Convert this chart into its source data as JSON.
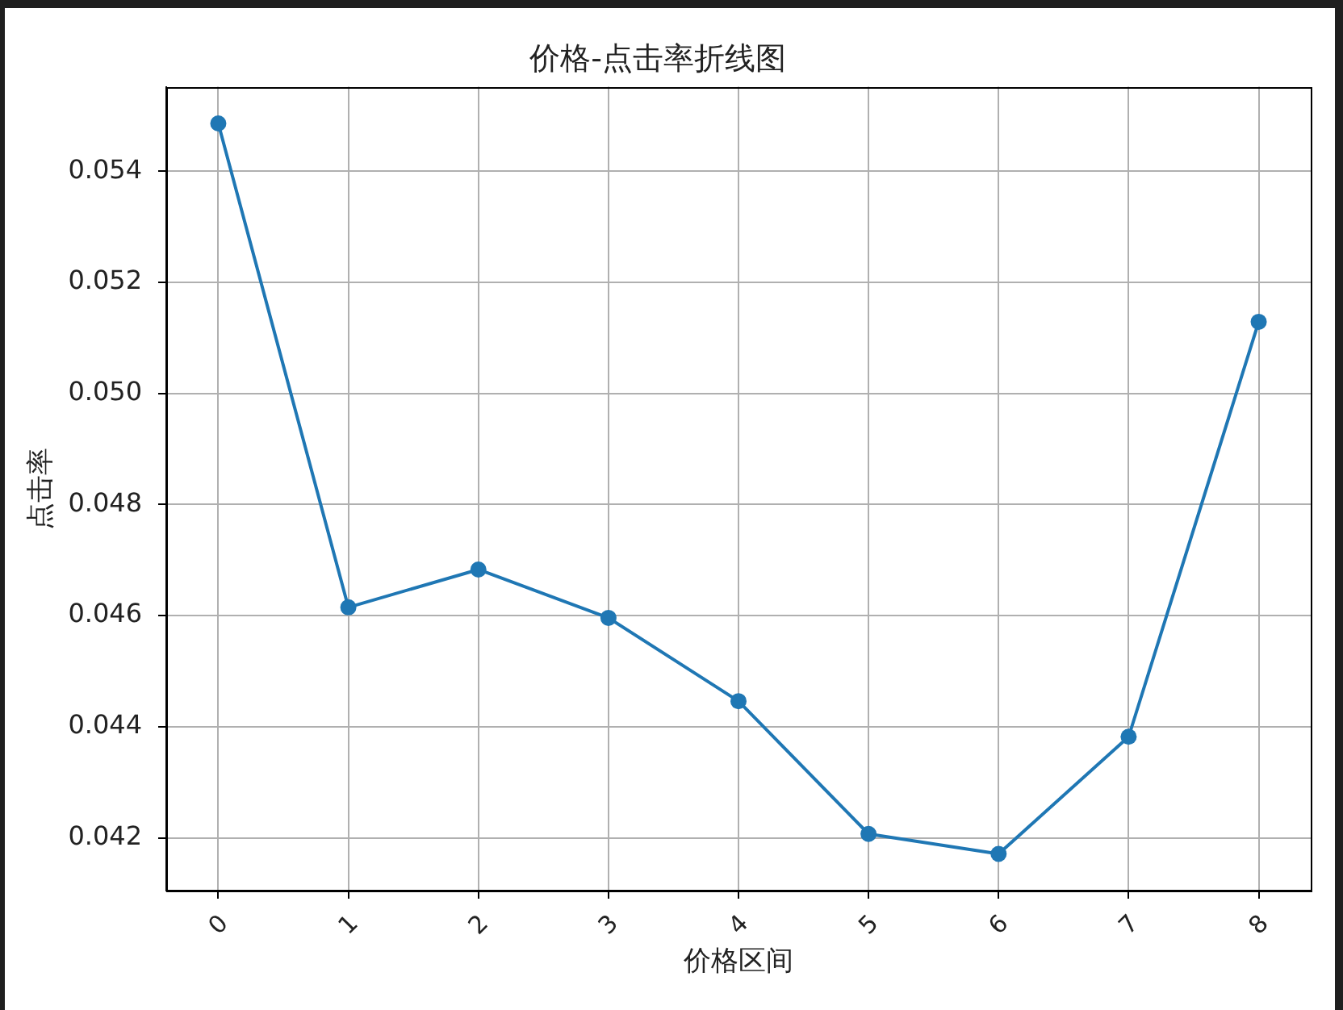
{
  "chart_data": {
    "type": "line",
    "title": "价格-点击率折线图",
    "xlabel": "价格区间",
    "ylabel": "点击率",
    "x": [
      0,
      1,
      2,
      3,
      4,
      5,
      6,
      7,
      8
    ],
    "series": [
      {
        "color": "#1f77b4",
        "values": [
          0.05486,
          0.04615,
          0.04683,
          0.04596,
          0.04446,
          0.04207,
          0.04171,
          0.04382,
          0.05129
        ]
      }
    ],
    "xlim": [
      -0.4,
      8.4
    ],
    "xticks": [
      0,
      1,
      2,
      3,
      4,
      5,
      6,
      7,
      8
    ],
    "ylim": [
      0.04105,
      0.05552
    ],
    "yticks": [
      0.042,
      0.044,
      0.046,
      0.048,
      {
        "value": 0.05,
        "label": "0.050"
      },
      0.052,
      0.054
    ],
    "grid": true,
    "marker": "circle",
    "line_style": "solid"
  }
}
